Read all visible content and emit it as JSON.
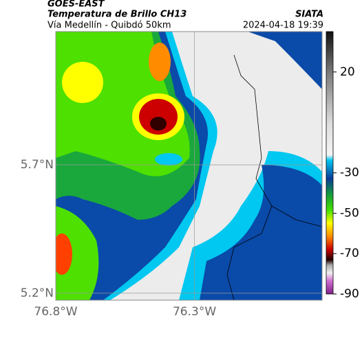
{
  "header": {
    "title": "GOES-EAST",
    "subtitle": "Temperatura de Brillo CH13",
    "route": "Vía Medellín - Quibdó 50km",
    "source": "SIATA",
    "timestamp": "2024-04-18 19:39"
  },
  "map": {
    "xlim": [
      -76.8,
      -75.84
    ],
    "ylim": [
      5.173,
      6.219
    ],
    "xticks": [
      {
        "value": -76.8,
        "label": "76.8°W"
      },
      {
        "value": -76.3,
        "label": "76.3°W"
      }
    ],
    "yticks": [
      {
        "value": 5.7,
        "label": "5.7°N"
      },
      {
        "value": 5.2,
        "label": "5.2°N"
      }
    ],
    "grid": true
  },
  "colorbar": {
    "clim": [
      -90,
      40
    ],
    "ticks": [
      20,
      -30,
      -50,
      -70,
      -90
    ]
  }
}
